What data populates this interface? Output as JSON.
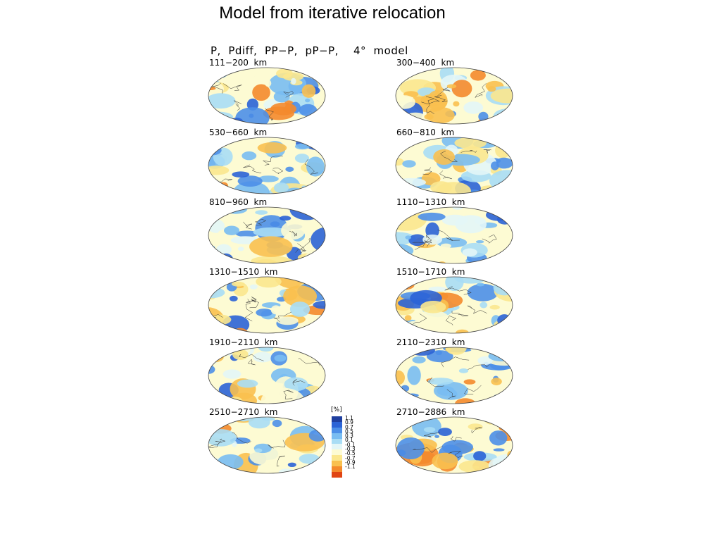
{
  "slide": {
    "title": "Model from iterative relocation"
  },
  "figure": {
    "header": "P,  Pdiff,  PP−P,  pP−P,    4°  model",
    "panels": [
      {
        "label": "111−200  km"
      },
      {
        "label": "300−400  km"
      },
      {
        "label": "530−660  km"
      },
      {
        "label": "660−810  km"
      },
      {
        "label": "810−960  km"
      },
      {
        "label": "1110−1310  km"
      },
      {
        "label": "1310−1510  km"
      },
      {
        "label": "1510−1710  km"
      },
      {
        "label": "1910−2110  km"
      },
      {
        "label": "2110−2310  km"
      },
      {
        "label": "2510−2710  km"
      },
      {
        "label": "2710−2886  km"
      }
    ],
    "colorbar": {
      "unit": "[%]",
      "ticks": [
        "1.1",
        "0.9",
        "0.7",
        "0.5",
        "0.3",
        "0.1",
        "-0.1",
        "-0.3",
        "-0.5",
        "-0.7",
        "-0.9",
        "-1.1"
      ],
      "colors": [
        "#1f3f9f",
        "#2b63d6",
        "#4c8fe8",
        "#79bdf2",
        "#a9ddf5",
        "#e3f6f7",
        "#fdfbd3",
        "#fbe78e",
        "#f9c04f",
        "#f48a2c",
        "#e04413"
      ]
    }
  }
}
